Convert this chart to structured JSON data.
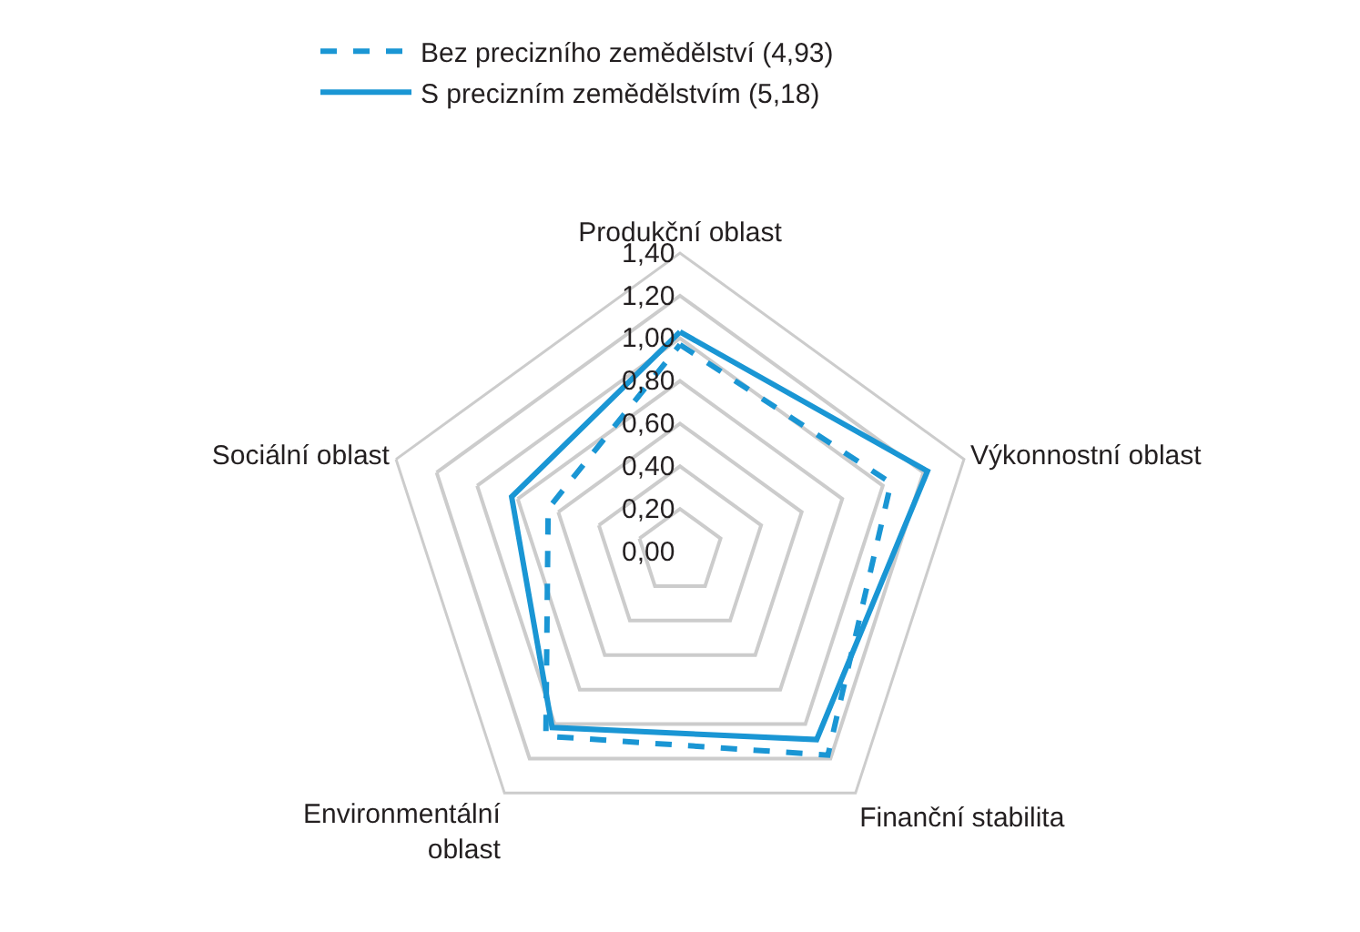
{
  "chart_data": {
    "type": "radar",
    "categories": [
      "Produkční oblast",
      "Výkonnostní oblast",
      "Finanční stabilita",
      "Environmentální oblast",
      "Sociální oblast"
    ],
    "series": [
      {
        "name": "Bez precizního zemědělství (4,93)",
        "color": "#1a96d4",
        "values": [
          0.97,
          1.04,
          1.18,
          1.07,
          0.65
        ],
        "line_style": "dashed"
      },
      {
        "name": "S precizním zemědělstvím (5,18)",
        "color": "#1a96d4",
        "values": [
          1.03,
          1.22,
          1.09,
          1.02,
          0.83
        ],
        "line_style": "solid"
      }
    ],
    "ylim": [
      0,
      1.4
    ],
    "yticks": [
      {
        "value": 0,
        "label": "0,00"
      },
      {
        "value": 0.2,
        "label": "0,20"
      },
      {
        "value": 0.4,
        "label": "0,40"
      },
      {
        "value": 0.6,
        "label": "0,60"
      },
      {
        "value": 0.8,
        "label": "0,80"
      },
      {
        "value": 1,
        "label": "1,00"
      },
      {
        "value": 1.2,
        "label": "1,20"
      },
      {
        "value": 1.4,
        "label": "1,40"
      }
    ],
    "grid": true,
    "legend": "top",
    "marker": "none"
  }
}
